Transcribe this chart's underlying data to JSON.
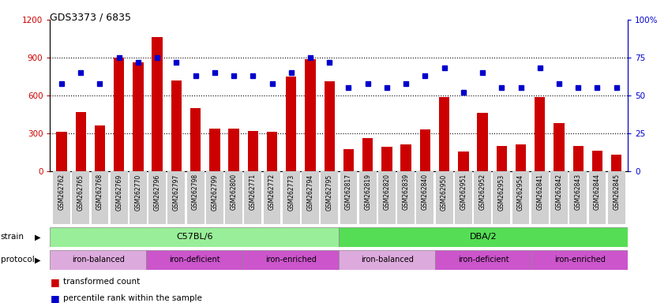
{
  "title": "GDS3373 / 6835",
  "samples": [
    "GSM262762",
    "GSM262765",
    "GSM262768",
    "GSM262769",
    "GSM262770",
    "GSM262796",
    "GSM262797",
    "GSM262798",
    "GSM262799",
    "GSM262800",
    "GSM262771",
    "GSM262772",
    "GSM262773",
    "GSM262794",
    "GSM262795",
    "GSM262817",
    "GSM262819",
    "GSM262820",
    "GSM262839",
    "GSM262840",
    "GSM262950",
    "GSM262951",
    "GSM262952",
    "GSM262953",
    "GSM262954",
    "GSM262841",
    "GSM262842",
    "GSM262843",
    "GSM262844",
    "GSM262845"
  ],
  "bar_values": [
    310,
    470,
    360,
    900,
    860,
    1060,
    720,
    500,
    340,
    340,
    320,
    310,
    750,
    890,
    710,
    175,
    260,
    195,
    215,
    330,
    590,
    155,
    460,
    200,
    210,
    590,
    380,
    200,
    165,
    130
  ],
  "percentile_values": [
    58,
    65,
    58,
    75,
    72,
    75,
    72,
    63,
    65,
    63,
    63,
    58,
    65,
    75,
    72,
    55,
    58,
    55,
    58,
    63,
    68,
    52,
    65,
    55,
    55,
    68,
    58,
    55,
    55,
    55
  ],
  "ylim_left": [
    0,
    1200
  ],
  "ylim_right": [
    0,
    100
  ],
  "yticks_left": [
    0,
    300,
    600,
    900,
    1200
  ],
  "yticks_right": [
    0,
    25,
    50,
    75,
    100
  ],
  "bar_color": "#cc0000",
  "dot_color": "#0000cc",
  "strain_c57_label": "C57BL/6",
  "strain_dba_label": "DBA/2",
  "strain_c57_color": "#99ee99",
  "strain_dba_color": "#55dd55",
  "protocol_balanced_color": "#ddaadd",
  "protocol_deficient_color": "#cc55cc",
  "protocol_enriched_color": "#cc55cc",
  "protocol_labels": [
    "iron-balanced",
    "iron-deficient",
    "iron-enriched",
    "iron-balanced",
    "iron-deficient",
    "iron-enriched"
  ],
  "protocol_counts": [
    5,
    5,
    5,
    5,
    5,
    5
  ],
  "legend_bar_label": "transformed count",
  "legend_dot_label": "percentile rank within the sample",
  "tick_bg_color": "#d0d0d0"
}
